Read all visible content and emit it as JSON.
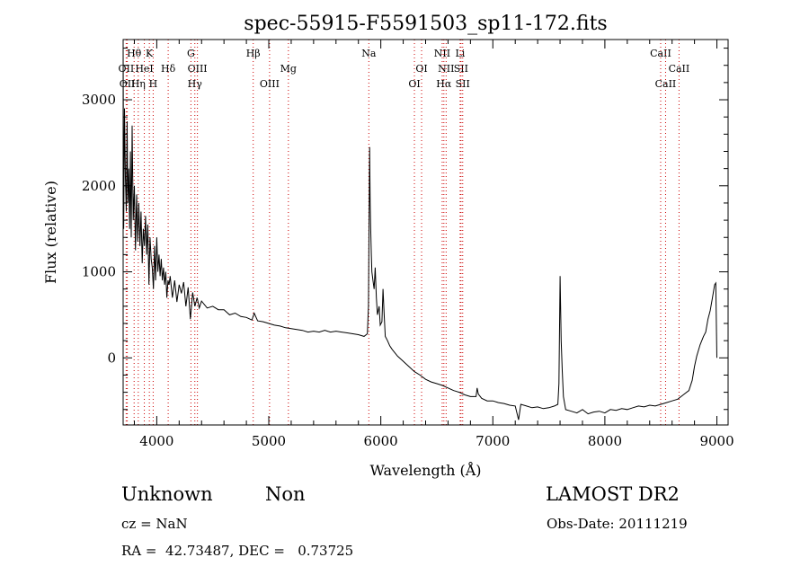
{
  "chart_data": {
    "type": "line",
    "title": "spec-55915-F5591503_sp11-172.fits",
    "xlabel": "Wavelength (Å)",
    "ylabel": "Flux (relative)",
    "xlim": [
      3700,
      9100
    ],
    "ylim": [
      -780,
      3700
    ],
    "xticks": [
      "4000",
      "5000",
      "6000",
      "7000",
      "8000",
      "9000"
    ],
    "yticks": [
      "0",
      "1000",
      "2000",
      "3000"
    ],
    "grid": false,
    "series": [
      {
        "points": [
          [
            3700,
            3600
          ],
          [
            3705,
            1500
          ],
          [
            3712,
            2900
          ],
          [
            3720,
            2100
          ],
          [
            3728,
            1700
          ],
          [
            3735,
            2750
          ],
          [
            3742,
            1800
          ],
          [
            3750,
            2200
          ],
          [
            3758,
            1500
          ],
          [
            3765,
            2400
          ],
          [
            3772,
            1400
          ],
          [
            3780,
            2700
          ],
          [
            3790,
            1600
          ],
          [
            3800,
            2000
          ],
          [
            3810,
            1250
          ],
          [
            3820,
            1900
          ],
          [
            3830,
            1350
          ],
          [
            3840,
            1800
          ],
          [
            3850,
            1300
          ],
          [
            3860,
            1700
          ],
          [
            3870,
            1100
          ],
          [
            3880,
            1500
          ],
          [
            3890,
            1300
          ],
          [
            3900,
            1650
          ],
          [
            3910,
            1200
          ],
          [
            3920,
            1550
          ],
          [
            3930,
            850
          ],
          [
            3940,
            1400
          ],
          [
            3950,
            1150
          ],
          [
            3960,
            1050
          ],
          [
            3970,
            800
          ],
          [
            3980,
            1300
          ],
          [
            3990,
            900
          ],
          [
            4000,
            1400
          ],
          [
            4010,
            1000
          ],
          [
            4020,
            1200
          ],
          [
            4030,
            950
          ],
          [
            4040,
            1150
          ],
          [
            4050,
            900
          ],
          [
            4060,
            1050
          ],
          [
            4070,
            850
          ],
          [
            4080,
            1000
          ],
          [
            4090,
            700
          ],
          [
            4100,
            900
          ],
          [
            4110,
            850
          ],
          [
            4120,
            950
          ],
          [
            4140,
            700
          ],
          [
            4160,
            900
          ],
          [
            4180,
            650
          ],
          [
            4200,
            850
          ],
          [
            4220,
            750
          ],
          [
            4240,
            880
          ],
          [
            4260,
            600
          ],
          [
            4280,
            820
          ],
          [
            4300,
            450
          ],
          [
            4320,
            760
          ],
          [
            4340,
            600
          ],
          [
            4360,
            700
          ],
          [
            4380,
            580
          ],
          [
            4400,
            660
          ],
          [
            4450,
            580
          ],
          [
            4500,
            600
          ],
          [
            4550,
            560
          ],
          [
            4600,
            560
          ],
          [
            4650,
            500
          ],
          [
            4700,
            520
          ],
          [
            4750,
            480
          ],
          [
            4800,
            470
          ],
          [
            4850,
            440
          ],
          [
            4870,
            520
          ],
          [
            4900,
            430
          ],
          [
            4950,
            420
          ],
          [
            5000,
            400
          ],
          [
            5050,
            380
          ],
          [
            5100,
            370
          ],
          [
            5150,
            350
          ],
          [
            5200,
            340
          ],
          [
            5250,
            330
          ],
          [
            5300,
            320
          ],
          [
            5350,
            300
          ],
          [
            5400,
            310
          ],
          [
            5450,
            300
          ],
          [
            5500,
            320
          ],
          [
            5550,
            300
          ],
          [
            5600,
            310
          ],
          [
            5650,
            300
          ],
          [
            5700,
            290
          ],
          [
            5750,
            280
          ],
          [
            5800,
            270
          ],
          [
            5850,
            250
          ],
          [
            5880,
            280
          ],
          [
            5890,
            600
          ],
          [
            5900,
            2450
          ],
          [
            5905,
            1800
          ],
          [
            5910,
            1500
          ],
          [
            5915,
            1200
          ],
          [
            5920,
            1000
          ],
          [
            5930,
            900
          ],
          [
            5940,
            800
          ],
          [
            5950,
            1050
          ],
          [
            5960,
            700
          ],
          [
            5970,
            500
          ],
          [
            5985,
            600
          ],
          [
            5995,
            380
          ],
          [
            6010,
            420
          ],
          [
            6020,
            800
          ],
          [
            6030,
            500
          ],
          [
            6040,
            250
          ],
          [
            6060,
            200
          ],
          [
            6080,
            140
          ],
          [
            6100,
            100
          ],
          [
            6150,
            20
          ],
          [
            6200,
            -40
          ],
          [
            6250,
            -100
          ],
          [
            6300,
            -160
          ],
          [
            6350,
            -200
          ],
          [
            6400,
            -250
          ],
          [
            6450,
            -280
          ],
          [
            6500,
            -300
          ],
          [
            6550,
            -320
          ],
          [
            6600,
            -350
          ],
          [
            6650,
            -380
          ],
          [
            6700,
            -400
          ],
          [
            6750,
            -430
          ],
          [
            6800,
            -450
          ],
          [
            6850,
            -450
          ],
          [
            6860,
            -350
          ],
          [
            6870,
            -420
          ],
          [
            6900,
            -470
          ],
          [
            6950,
            -500
          ],
          [
            7000,
            -500
          ],
          [
            7050,
            -520
          ],
          [
            7100,
            -530
          ],
          [
            7150,
            -550
          ],
          [
            7200,
            -560
          ],
          [
            7230,
            -720
          ],
          [
            7250,
            -540
          ],
          [
            7300,
            -560
          ],
          [
            7350,
            -580
          ],
          [
            7400,
            -570
          ],
          [
            7450,
            -590
          ],
          [
            7500,
            -580
          ],
          [
            7550,
            -560
          ],
          [
            7580,
            -540
          ],
          [
            7590,
            -300
          ],
          [
            7600,
            950
          ],
          [
            7610,
            200
          ],
          [
            7620,
            -150
          ],
          [
            7630,
            -450
          ],
          [
            7650,
            -600
          ],
          [
            7700,
            -620
          ],
          [
            7750,
            -640
          ],
          [
            7800,
            -600
          ],
          [
            7850,
            -650
          ],
          [
            7900,
            -630
          ],
          [
            7950,
            -620
          ],
          [
            8000,
            -640
          ],
          [
            8050,
            -600
          ],
          [
            8100,
            -610
          ],
          [
            8150,
            -590
          ],
          [
            8200,
            -600
          ],
          [
            8250,
            -580
          ],
          [
            8300,
            -560
          ],
          [
            8350,
            -570
          ],
          [
            8400,
            -550
          ],
          [
            8450,
            -560
          ],
          [
            8500,
            -540
          ],
          [
            8550,
            -520
          ],
          [
            8600,
            -500
          ],
          [
            8650,
            -480
          ],
          [
            8700,
            -430
          ],
          [
            8750,
            -380
          ],
          [
            8780,
            -260
          ],
          [
            8800,
            -100
          ],
          [
            8820,
            20
          ],
          [
            8850,
            150
          ],
          [
            8880,
            250
          ],
          [
            8900,
            300
          ],
          [
            8920,
            450
          ],
          [
            8940,
            550
          ],
          [
            8960,
            700
          ],
          [
            8980,
            850
          ],
          [
            8990,
            870
          ],
          [
            9000,
            0
          ]
        ]
      }
    ],
    "line_markers": [
      {
        "label": "Hθ",
        "x": 3798,
        "row": 1,
        "color": "#cc0000"
      },
      {
        "label": "K",
        "x": 3934,
        "row": 1,
        "color": "#cc0000"
      },
      {
        "label": "G",
        "x": 4305,
        "row": 1,
        "color": "#cc0000"
      },
      {
        "label": "Hβ",
        "x": 4861,
        "row": 1,
        "color": "#cc0000"
      },
      {
        "label": "Na",
        "x": 5893,
        "row": 1,
        "color": "#cc0000"
      },
      {
        "label": "NII",
        "x": 6548,
        "row": 1,
        "color": "#cc0000"
      },
      {
        "label": "Li",
        "x": 6708,
        "row": 1,
        "color": "#cc0000"
      },
      {
        "label": "CaII",
        "x": 8498,
        "row": 1,
        "color": "#cc0000"
      },
      {
        "label": "OII",
        "x": 3727,
        "row": 2,
        "color": "#cc0000"
      },
      {
        "label": "HeI",
        "x": 3889,
        "row": 2,
        "color": "#cc0000"
      },
      {
        "label": "Hδ",
        "x": 4102,
        "row": 2,
        "color": "#cc0000"
      },
      {
        "label": "OIII",
        "x": 4363,
        "row": 2,
        "color": "#cc0000"
      },
      {
        "label": "Mg",
        "x": 5175,
        "row": 2,
        "color": "#cc0000"
      },
      {
        "label": "OI",
        "x": 6364,
        "row": 2,
        "color": "#cc0000"
      },
      {
        "label": "NII",
        "x": 6583,
        "row": 2,
        "color": "#cc0000"
      },
      {
        "label": "SII",
        "x": 6716,
        "row": 2,
        "color": "#cc0000"
      },
      {
        "label": "CaII",
        "x": 8662,
        "row": 2,
        "color": "#cc0000"
      },
      {
        "label": "OII",
        "x": 3737,
        "row": 3,
        "color": "#cc0000"
      },
      {
        "label": "Hη",
        "x": 3835,
        "row": 3,
        "color": "#cc0000"
      },
      {
        "label": "H",
        "x": 3968,
        "row": 3,
        "color": "#cc0000"
      },
      {
        "label": "Hγ",
        "x": 4340,
        "row": 3,
        "color": "#cc0000"
      },
      {
        "label": "OIII",
        "x": 5007,
        "row": 3,
        "color": "#cc0000"
      },
      {
        "label": "OI",
        "x": 6300,
        "row": 3,
        "color": "#cc0000"
      },
      {
        "label": "Hα",
        "x": 6563,
        "row": 3,
        "color": "#cc0000"
      },
      {
        "label": "SII",
        "x": 6731,
        "row": 3,
        "color": "#cc0000"
      },
      {
        "label": "CaII",
        "x": 8542,
        "row": 3,
        "color": "#cc0000"
      }
    ]
  },
  "info": {
    "class": "Unknown",
    "subclass": "Non",
    "survey": "LAMOST DR2",
    "cz": "cz = NaN",
    "obs_date": "Obs-Date: 20111219",
    "coords": "RA =  42.73487, DEC =   0.73725"
  }
}
